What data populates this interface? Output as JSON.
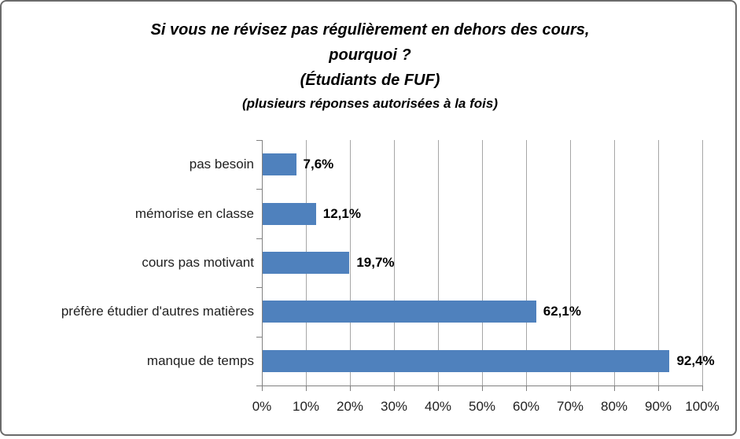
{
  "frame": {
    "background": "#ffffff",
    "border_color": "#6b6b6b"
  },
  "title": {
    "line1": "Si vous ne révisez pas régulièrement en dehors des cours,",
    "line2": "pourquoi ?",
    "line3": "(Étudiants de FUF)",
    "line4": "(plusieurs réponses autorisées à la fois)"
  },
  "chart_data": {
    "type": "bar",
    "orientation": "horizontal",
    "title": "Si vous ne révisez pas régulièrement en dehors des cours, pourquoi ? (Étudiants de FUF) (plusieurs réponses autorisées à la fois)",
    "categories": [
      "pas besoin",
      "mémorise en classe",
      "cours pas motivant",
      "préfère étudier d'autres matières",
      "manque de temps"
    ],
    "values": [
      7.6,
      12.1,
      19.7,
      62.1,
      92.4
    ],
    "value_labels": [
      "7,6%",
      "12,1%",
      "19,7%",
      "62,1%",
      "92,4%"
    ],
    "x_tick_labels": [
      "0%",
      "10%",
      "20%",
      "30%",
      "40%",
      "50%",
      "60%",
      "70%",
      "80%",
      "90%",
      "100%"
    ],
    "xlim": [
      0,
      100
    ],
    "grid": true,
    "legend": "none",
    "bar_color": "#4f81bd",
    "gridline_color": "#a6a6a6",
    "axis_color": "#808080"
  }
}
